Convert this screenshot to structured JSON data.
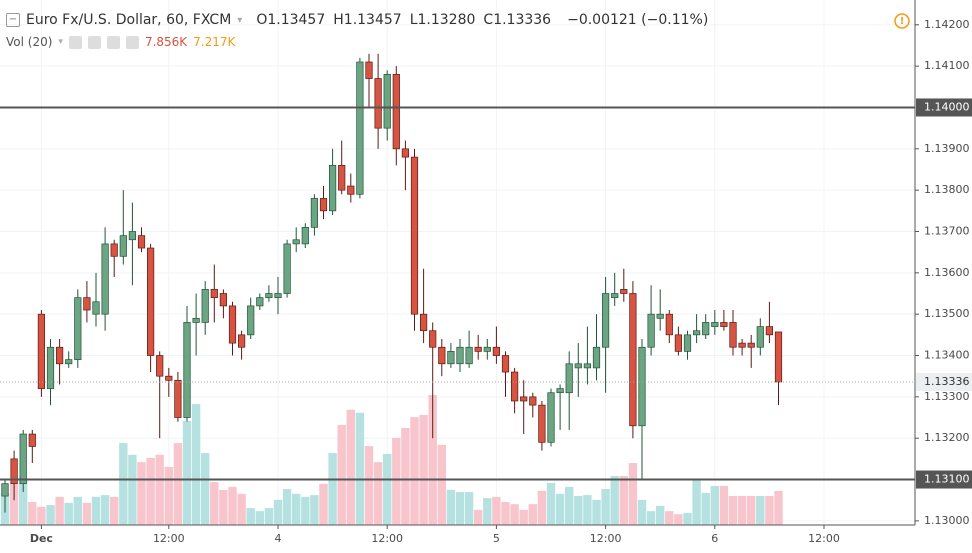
{
  "chart_data": {
    "type": "candlestick",
    "header": {
      "title": "Euro Fx/U.S. Dollar, 60, FXCM",
      "ohlc": [
        {
          "key": "O",
          "value": "1.13457"
        },
        {
          "key": "H",
          "value": "1.13457"
        },
        {
          "key": "L",
          "value": "1.13280"
        },
        {
          "key": "C",
          "value": "1.13336"
        }
      ],
      "change": "−0.00121 (−0.11%)",
      "volume_title": "Vol (20)",
      "volume_last": "7.856K",
      "volume_ma": "7.217K"
    },
    "x": [
      0,
      1,
      2,
      3,
      4,
      5,
      6,
      7,
      8,
      9,
      10,
      11,
      12,
      13,
      14,
      15,
      16,
      17,
      18,
      19,
      20,
      21,
      22,
      23,
      24,
      25,
      26,
      27,
      28,
      29,
      30,
      31,
      32,
      33,
      34,
      35,
      36,
      37,
      38,
      39,
      40,
      41,
      42,
      43,
      44,
      45,
      46,
      47,
      48,
      49,
      50,
      51,
      52,
      53,
      54,
      55,
      56,
      57,
      58,
      59,
      60,
      61,
      62,
      63,
      64,
      65,
      66,
      67,
      68,
      69,
      70,
      71,
      72,
      73,
      74,
      75,
      76,
      77,
      78,
      79,
      80,
      81,
      82,
      83,
      84,
      85
    ],
    "open": [
      1.1306,
      1.1315,
      1.1309,
      1.1321,
      1.135,
      1.1332,
      1.1342,
      1.1338,
      1.1339,
      1.1354,
      1.135,
      1.135,
      1.1367,
      1.1364,
      1.1368,
      1.1369,
      1.1366,
      1.134,
      1.1335,
      1.1334,
      1.1325,
      1.1348,
      1.1348,
      1.1356,
      1.1355,
      1.1352,
      1.1345,
      1.1345,
      1.1352,
      1.1354,
      1.1354,
      1.1355,
      1.1367,
      1.1367,
      1.1371,
      1.1378,
      1.1375,
      1.1386,
      1.1381,
      1.1379,
      1.1411,
      1.1407,
      1.1395,
      1.1408,
      1.139,
      1.1388,
      1.135,
      1.1346,
      1.1342,
      1.1338,
      1.1338,
      1.1338,
      1.1342,
      1.1341,
      1.1342,
      1.134,
      1.1336,
      1.133,
      1.133,
      1.1328,
      1.1319,
      1.1331,
      1.1331,
      1.1337,
      1.1337,
      1.1337,
      1.1342,
      1.1354,
      1.1356,
      1.1355,
      1.1323,
      1.1342,
      1.1349,
      1.135,
      1.1345,
      1.1341,
      1.1345,
      1.1345,
      1.1347,
      1.1348,
      1.1348,
      1.1343,
      1.1343,
      1.1342,
      1.1347,
      1.13457
    ],
    "high": [
      1.131,
      1.1317,
      1.1322,
      1.1322,
      1.1351,
      1.1344,
      1.1344,
      1.1341,
      1.1356,
      1.1358,
      1.136,
      1.1371,
      1.1368,
      1.138,
      1.1377,
      1.1371,
      1.1367,
      1.1341,
      1.1337,
      1.1336,
      1.1352,
      1.1355,
      1.1358,
      1.1362,
      1.1356,
      1.1353,
      1.1346,
      1.1354,
      1.1355,
      1.1357,
      1.1359,
      1.1368,
      1.1371,
      1.1372,
      1.1379,
      1.1381,
      1.139,
      1.1392,
      1.1384,
      1.1412,
      1.1413,
      1.1413,
      1.1409,
      1.141,
      1.1392,
      1.139,
      1.1361,
      1.1348,
      1.1344,
      1.1343,
      1.1344,
      1.1346,
      1.1345,
      1.1344,
      1.1347,
      1.1341,
      1.1337,
      1.1334,
      1.1331,
      1.1329,
      1.1332,
      1.1333,
      1.1341,
      1.1343,
      1.1347,
      1.135,
      1.1359,
      1.136,
      1.1361,
      1.1358,
      1.1344,
      1.1357,
      1.1356,
      1.1351,
      1.1347,
      1.1346,
      1.135,
      1.135,
      1.1351,
      1.1351,
      1.1351,
      1.1344,
      1.1345,
      1.1349,
      1.1353,
      1.13457
    ],
    "low": [
      1.1302,
      1.1305,
      1.1307,
      1.1314,
      1.133,
      1.1328,
      1.1333,
      1.1337,
      1.1337,
      1.1348,
      1.1347,
      1.1346,
      1.1359,
      1.1362,
      1.1357,
      1.1365,
      1.1336,
      1.132,
      1.133,
      1.1324,
      1.1324,
      1.134,
      1.1345,
      1.1348,
      1.1349,
      1.134,
      1.1339,
      1.1344,
      1.1351,
      1.1353,
      1.135,
      1.1354,
      1.1365,
      1.1366,
      1.1369,
      1.1373,
      1.1374,
      1.1379,
      1.1377,
      1.1378,
      1.14,
      1.139,
      1.1392,
      1.1386,
      1.138,
      1.1346,
      1.1343,
      1.132,
      1.1335,
      1.1337,
      1.1336,
      1.1337,
      1.1339,
      1.1339,
      1.1338,
      1.133,
      1.1326,
      1.1321,
      1.1325,
      1.1317,
      1.1318,
      1.1322,
      1.1322,
      1.133,
      1.1333,
      1.1334,
      1.1331,
      1.1352,
      1.1353,
      1.132,
      1.131,
      1.134,
      1.1346,
      1.1343,
      1.134,
      1.1339,
      1.1343,
      1.1344,
      1.1345,
      1.1346,
      1.134,
      1.134,
      1.1337,
      1.134,
      1.1343,
      1.1328
    ],
    "close": [
      1.1309,
      1.1309,
      1.1321,
      1.1318,
      1.1332,
      1.1342,
      1.1338,
      1.1339,
      1.1354,
      1.1351,
      1.1353,
      1.1367,
      1.1364,
      1.1369,
      1.137,
      1.1366,
      1.134,
      1.1335,
      1.1334,
      1.1325,
      1.1348,
      1.1349,
      1.1356,
      1.1354,
      1.1352,
      1.1343,
      1.1342,
      1.1352,
      1.1354,
      1.1355,
      1.1355,
      1.1367,
      1.1368,
      1.1371,
      1.1378,
      1.1375,
      1.1386,
      1.138,
      1.1379,
      1.1411,
      1.1407,
      1.1395,
      1.1408,
      1.139,
      1.1388,
      1.135,
      1.1346,
      1.1342,
      1.1338,
      1.1341,
      1.1342,
      1.1342,
      1.1341,
      1.1342,
      1.134,
      1.1336,
      1.1329,
      1.1329,
      1.1328,
      1.1319,
      1.1331,
      1.1332,
      1.1338,
      1.1338,
      1.1338,
      1.1342,
      1.1355,
      1.1355,
      1.1355,
      1.1323,
      1.1342,
      1.135,
      1.135,
      1.1345,
      1.1341,
      1.1345,
      1.1346,
      1.1348,
      1.1348,
      1.1347,
      1.1342,
      1.1342,
      1.1342,
      1.1347,
      1.1345,
      1.13336
    ],
    "volume": [
      7.4,
      9.7,
      10.9,
      5.3,
      4.2,
      4.6,
      6.5,
      5.1,
      6.5,
      5.1,
      6.5,
      6.9,
      6.5,
      18.9,
      16.2,
      14.5,
      15.5,
      16.2,
      13.4,
      18.9,
      24.0,
      27.9,
      16.6,
      9.9,
      8.1,
      8.8,
      7.2,
      3.9,
      3.2,
      3.9,
      5.8,
      8.3,
      7.2,
      6.5,
      6.9,
      9.5,
      16.6,
      23.1,
      26.6,
      25.9,
      18.2,
      14.5,
      16.4,
      20.1,
      22.4,
      24.9,
      25.4,
      30.0,
      18.5,
      8.1,
      7.6,
      7.6,
      3.5,
      6.2,
      6.5,
      5.3,
      4.8,
      3.5,
      4.8,
      7.9,
      9.7,
      7.2,
      8.8,
      6.7,
      6.9,
      5.8,
      8.3,
      11.3,
      11.3,
      14.3,
      5.8,
      3.2,
      4.4,
      3.2,
      2.5,
      2.8,
      10.4,
      7.4,
      9.0,
      9.0,
      6.7,
      6.7,
      6.7,
      6.7,
      6.7,
      7.856
    ],
    "up_color": "#6ba583",
    "down_color": "#d75442",
    "volume_up_color": "#b5e2e0",
    "volume_down_color": "#f8c5cd",
    "xlim": [
      -0.55,
      100
    ],
    "xticks": [
      {
        "value": 4,
        "label": "Dec"
      },
      {
        "value": 18,
        "label": "12:00"
      },
      {
        "value": 30,
        "label": "4"
      },
      {
        "value": 42,
        "label": "12:00"
      },
      {
        "value": 54,
        "label": "5"
      },
      {
        "value": 66,
        "label": "12:00"
      },
      {
        "value": 78,
        "label": "6"
      },
      {
        "value": 90,
        "label": "12:00"
      }
    ],
    "ylim": [
      1.1299,
      1.1426
    ],
    "yticks": [
      {
        "value": 1.142,
        "label": "1.14200"
      },
      {
        "value": 1.141,
        "label": "1.14100"
      },
      {
        "value": 1.139,
        "label": "1.13900"
      },
      {
        "value": 1.138,
        "label": "1.13800"
      },
      {
        "value": 1.137,
        "label": "1.13700"
      },
      {
        "value": 1.136,
        "label": "1.13600"
      },
      {
        "value": 1.135,
        "label": "1.13500"
      },
      {
        "value": 1.134,
        "label": "1.13400"
      },
      {
        "value": 1.133,
        "label": "1.13300"
      },
      {
        "value": 1.132,
        "label": "1.13200"
      },
      {
        "value": 1.13,
        "label": "1.13000"
      }
    ],
    "volume_ylim": [
      0,
      33
    ],
    "hlines": [
      {
        "value": 1.14,
        "label": "1.14000"
      },
      {
        "value": 1.131,
        "label": "1.13100"
      }
    ],
    "price_line": {
      "value": 1.13336,
      "label": "1.13336"
    },
    "grid": true
  }
}
